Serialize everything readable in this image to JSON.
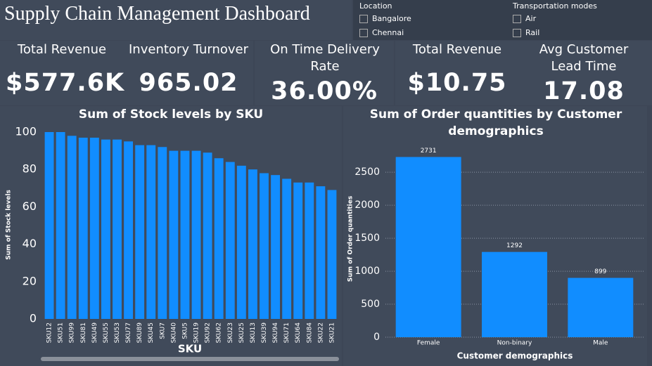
{
  "header": {
    "title": "Supply Chain Management Dashboard"
  },
  "slicers": [
    {
      "title": "Location",
      "items": [
        "Bangalore",
        "Chennai"
      ]
    },
    {
      "title": "Transportation modes",
      "items": [
        "Air",
        "Rail"
      ]
    }
  ],
  "kpis": [
    {
      "label": "Total Revenue",
      "value": "$577.6K"
    },
    {
      "label": "Inventory Turnover",
      "value": "965.02"
    },
    {
      "label": "On Time Delivery Rate",
      "value": "36.00%"
    },
    {
      "label": "Total Revenue",
      "value": "$10.75"
    },
    {
      "label": "Avg Customer Lead Time",
      "value": "17.08"
    }
  ],
  "chart_data": [
    {
      "type": "bar",
      "title": "Sum of Stock levels by SKU",
      "x_label": "SKU",
      "y_label": "Sum of Stock levels",
      "categories": [
        "SKU12",
        "SKU51",
        "SKU99",
        "SKU81",
        "SKU49",
        "SKU55",
        "SKU53",
        "SKU77",
        "SKU89",
        "SKU45",
        "SKU7",
        "SKU40",
        "SKU5",
        "SKU19",
        "SKU92",
        "SKU62",
        "SKU23",
        "SKU25",
        "SKU13",
        "SKU39",
        "SKU94",
        "SKU71",
        "SKU64",
        "SKU84",
        "SKU22",
        "SKU21"
      ],
      "values": [
        100,
        100,
        98,
        97,
        97,
        96,
        96,
        95,
        93,
        93,
        92,
        90,
        90,
        90,
        89,
        86,
        84,
        82,
        80,
        78,
        77,
        75,
        73,
        73,
        71,
        69
      ],
      "color": "#118dff",
      "ylim": [
        0,
        100
      ],
      "yticks": [
        0,
        20,
        40,
        60,
        80,
        100
      ],
      "grid": false
    },
    {
      "type": "bar",
      "title": "Sum of Order quantities by Customer demographics",
      "x_label": "Customer demographics",
      "y_label": "Sum of Order quantities",
      "categories": [
        "Female",
        "Non-binary",
        "Male"
      ],
      "values": [
        2731,
        1292,
        899
      ],
      "data_labels": true,
      "color": "#118dff",
      "ylim": [
        0,
        2800
      ],
      "yticks": [
        0,
        500,
        1000,
        1500,
        2000,
        2500
      ],
      "grid": true
    }
  ]
}
